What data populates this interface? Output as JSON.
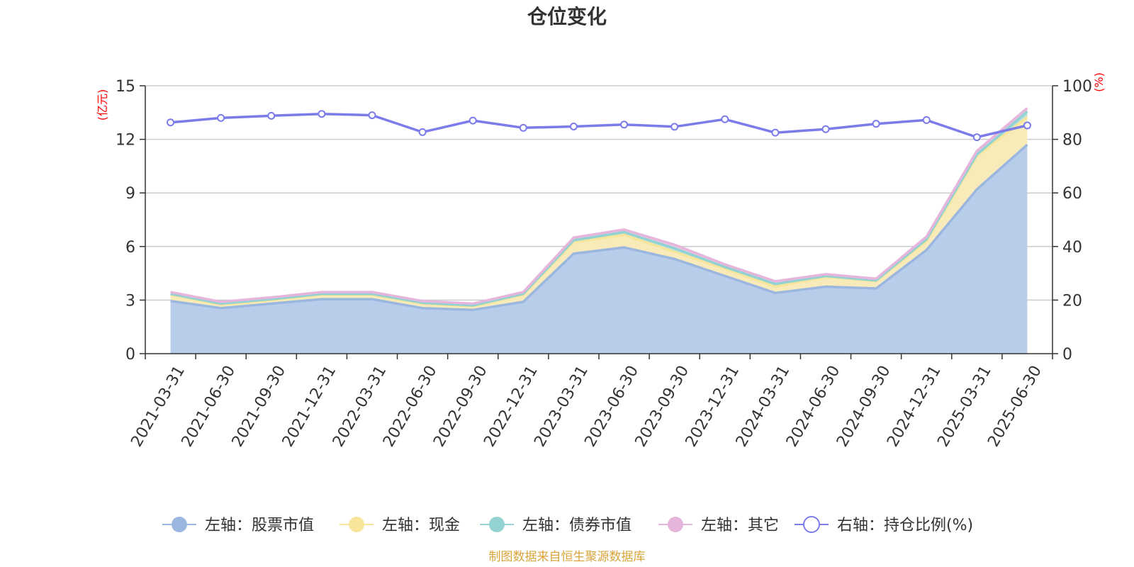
{
  "chart_data": {
    "type": "area",
    "title": "仓位变化",
    "categories": [
      "2021-03-31",
      "2021-06-30",
      "2021-09-30",
      "2021-12-31",
      "2022-03-31",
      "2022-06-30",
      "2022-09-30",
      "2022-12-31",
      "2023-03-31",
      "2023-06-30",
      "2023-09-30",
      "2023-12-31",
      "2024-03-31",
      "2024-06-30",
      "2024-09-30",
      "2024-12-31",
      "2025-03-31",
      "2025-06-30"
    ],
    "left_axis": {
      "unit": "(亿元)",
      "ylim": [
        0,
        15
      ],
      "ticks": [
        "0",
        "3",
        "6",
        "9",
        "12",
        "15"
      ]
    },
    "right_axis": {
      "unit": "(%)",
      "ylim": [
        0,
        100
      ],
      "ticks": [
        "0",
        "20",
        "40",
        "60",
        "80",
        "100"
      ]
    },
    "stacked": true,
    "series": [
      {
        "name": "左轴：股票市值",
        "axis": "left",
        "color": "#9bb7e0",
        "fill": "#b8cdea",
        "values": [
          2.95,
          2.55,
          2.8,
          3.05,
          3.05,
          2.55,
          2.45,
          2.9,
          5.6,
          5.95,
          5.3,
          4.35,
          3.4,
          3.75,
          3.65,
          5.8,
          9.2,
          11.7
        ]
      },
      {
        "name": "左轴：现金",
        "axis": "left",
        "color": "#f7e59c",
        "fill": "#f8ebb9",
        "values": [
          0.35,
          0.2,
          0.2,
          0.25,
          0.25,
          0.25,
          0.2,
          0.4,
          0.65,
          0.7,
          0.4,
          0.4,
          0.35,
          0.55,
          0.4,
          0.5,
          1.85,
          1.55
        ]
      },
      {
        "name": "左轴：债券市值",
        "axis": "left",
        "color": "#93d2d2",
        "fill": "#b5e1df",
        "values": [
          0.05,
          0.05,
          0.05,
          0.05,
          0.05,
          0.05,
          0.05,
          0.05,
          0.1,
          0.15,
          0.2,
          0.1,
          0.15,
          0.05,
          0.05,
          0.1,
          0.1,
          0.3
        ]
      },
      {
        "name": "左轴：其它",
        "axis": "left",
        "color": "#e6b5dc",
        "fill": "#edcae6",
        "values": [
          0.1,
          0.1,
          0.1,
          0.1,
          0.1,
          0.1,
          0.1,
          0.1,
          0.15,
          0.15,
          0.2,
          0.15,
          0.15,
          0.1,
          0.1,
          0.15,
          0.2,
          0.2
        ]
      },
      {
        "name": "右轴：持仓比例(%)",
        "axis": "right",
        "color": "#7b7bea",
        "type": "line",
        "values": [
          86.3,
          88.0,
          88.8,
          89.5,
          89.0,
          82.7,
          87.0,
          84.3,
          84.8,
          85.5,
          84.7,
          87.5,
          82.5,
          83.8,
          85.8,
          87.2,
          80.8,
          85.2
        ]
      }
    ],
    "grid": true,
    "legend_position": "bottom"
  },
  "source": {
    "text": "制图数据来自恒生聚源数据库",
    "color": "#d9a53c"
  },
  "colors": {
    "axis": "#333333",
    "grid": "#cccccc",
    "unit": "#ff0000",
    "title": "#333333"
  }
}
